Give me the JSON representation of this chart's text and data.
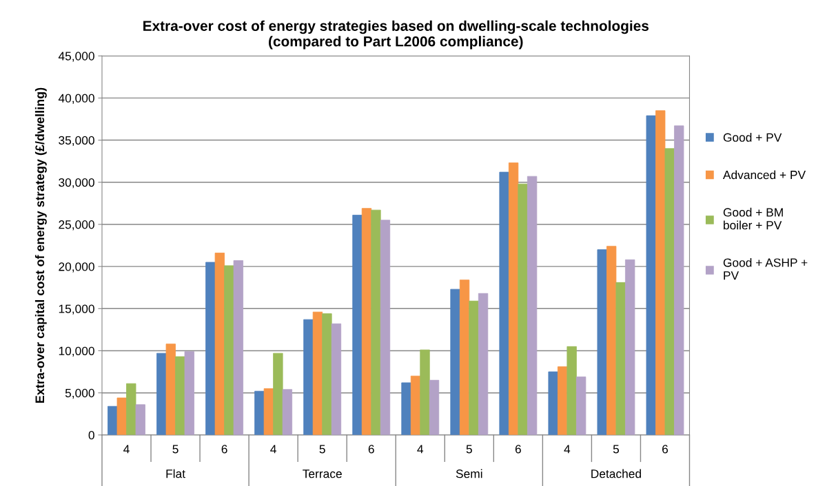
{
  "chart_data": {
    "type": "bar",
    "title": "Extra-over cost of energy strategies based on dwelling-scale technologies\n(compared to Part L2006 compliance)",
    "ylabel": "Extra-over capital cost of energy strategy (£/dwelling)",
    "categories": [
      "4",
      "5",
      "6",
      "4",
      "5",
      "6",
      "4",
      "5",
      "6",
      "4",
      "5",
      "6"
    ],
    "annotations": [
      "Flat",
      "Terrace",
      "Semi",
      "Detached"
    ],
    "series": [
      {
        "name": "Good + PV",
        "color": "#4f81bd",
        "values": [
          3400,
          9700,
          20500,
          5200,
          13700,
          26100,
          6200,
          17300,
          31200,
          7500,
          22000,
          37900
        ]
      },
      {
        "name": "Advanced + PV",
        "color": "#f79646",
        "values": [
          4400,
          10800,
          21600,
          5500,
          14600,
          26900,
          7000,
          18400,
          32300,
          8100,
          22400,
          38500
        ]
      },
      {
        "name": "Good + BM\nboiler + PV",
        "color": "#9bbb59",
        "values": [
          6100,
          9300,
          20100,
          9700,
          14400,
          26700,
          10100,
          15900,
          29800,
          10500,
          18100,
          34000
        ]
      },
      {
        "name": "Good + ASHP +\nPV",
        "color": "#b3a2c7",
        "values": [
          3600,
          9900,
          20700,
          5400,
          13200,
          25500,
          6500,
          16800,
          30700,
          6900,
          20800,
          36700
        ]
      }
    ],
    "ylim": [
      0,
      45000
    ],
    "yticks": [
      {
        "value": 0,
        "label": "0"
      },
      {
        "value": 5000,
        "label": "5,000"
      },
      {
        "value": 10000,
        "label": "10,000"
      },
      {
        "value": 15000,
        "label": "15,000"
      },
      {
        "value": 20000,
        "label": "20,000"
      },
      {
        "value": 25000,
        "label": "25,000"
      },
      {
        "value": 30000,
        "label": "30,000"
      },
      {
        "value": 35000,
        "label": "35,000"
      },
      {
        "value": 40000,
        "label": "40,000"
      },
      {
        "value": 45000,
        "label": "45,000"
      }
    ],
    "grid": "y",
    "legend": "right"
  }
}
